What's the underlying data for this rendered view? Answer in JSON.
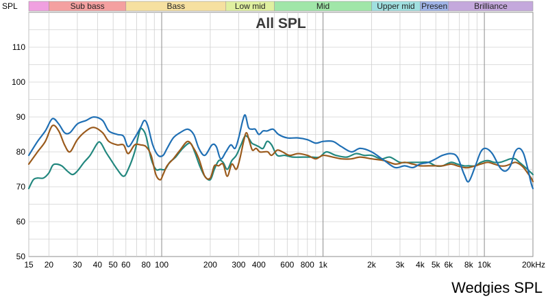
{
  "chart_data": {
    "type": "line",
    "title": "All SPL",
    "ylabel": "SPL",
    "xlabel": "",
    "xscale": "log",
    "xlim": [
      15,
      20000
    ],
    "ylim": [
      50,
      120
    ],
    "grid": true,
    "yticks": [
      50,
      60,
      70,
      80,
      90,
      100,
      110
    ],
    "xticks": [
      {
        "value": 15,
        "label": "15"
      },
      {
        "value": 20,
        "label": "20"
      },
      {
        "value": 30,
        "label": "30"
      },
      {
        "value": 40,
        "label": "40"
      },
      {
        "value": 50,
        "label": "50"
      },
      {
        "value": 60,
        "label": "60"
      },
      {
        "value": 80,
        "label": "80"
      },
      {
        "value": 100,
        "label": "100"
      },
      {
        "value": 200,
        "label": "200"
      },
      {
        "value": 300,
        "label": "300"
      },
      {
        "value": 400,
        "label": "400"
      },
      {
        "value": 600,
        "label": "600"
      },
      {
        "value": 800,
        "label": "800"
      },
      {
        "value": 1000,
        "label": "1k"
      },
      {
        "value": 2000,
        "label": "2k"
      },
      {
        "value": 3000,
        "label": "3k"
      },
      {
        "value": 4000,
        "label": "4k"
      },
      {
        "value": 5000,
        "label": "5k"
      },
      {
        "value": 6000,
        "label": "6k"
      },
      {
        "value": 8000,
        "label": "8k"
      },
      {
        "value": 10000,
        "label": "10k"
      },
      {
        "value": 20000,
        "label": "20kHz"
      }
    ],
    "bands": [
      {
        "label": "",
        "from": 15,
        "to": 20,
        "color": "#f0a0e0"
      },
      {
        "label": "Sub bass",
        "from": 20,
        "to": 60,
        "color": "#f4a0a0"
      },
      {
        "label": "Bass",
        "from": 60,
        "to": 250,
        "color": "#f6e0a0"
      },
      {
        "label": "Low mid",
        "from": 250,
        "to": 500,
        "color": "#e0f0a0"
      },
      {
        "label": "Mid",
        "from": 500,
        "to": 2000,
        "color": "#a0e6a8"
      },
      {
        "label": "Upper mid",
        "from": 2000,
        "to": 4000,
        "color": "#a0e0e0"
      },
      {
        "label": "Presen",
        "from": 4000,
        "to": 6000,
        "color": "#a0b4e8"
      },
      {
        "label": "Brilliance",
        "from": 6000,
        "to": 20000,
        "color": "#c4a8dc"
      }
    ],
    "series": [
      {
        "color": "#1f6fb4",
        "points": [
          [
            15,
            79
          ],
          [
            17,
            83
          ],
          [
            19,
            86
          ],
          [
            21,
            89.5
          ],
          [
            23,
            88
          ],
          [
            25,
            85.5
          ],
          [
            27,
            85.5
          ],
          [
            30,
            88
          ],
          [
            34,
            89
          ],
          [
            38,
            90
          ],
          [
            43,
            89
          ],
          [
            47,
            86
          ],
          [
            53,
            85
          ],
          [
            58,
            84.5
          ],
          [
            62,
            81.5
          ],
          [
            68,
            84
          ],
          [
            74,
            87
          ],
          [
            78,
            89
          ],
          [
            82,
            87.5
          ],
          [
            88,
            82
          ],
          [
            95,
            79
          ],
          [
            102,
            79
          ],
          [
            108,
            81
          ],
          [
            118,
            84
          ],
          [
            130,
            85.5
          ],
          [
            145,
            86.5
          ],
          [
            158,
            85
          ],
          [
            170,
            81
          ],
          [
            185,
            79
          ],
          [
            205,
            82
          ],
          [
            218,
            81.5
          ],
          [
            232,
            78
          ],
          [
            250,
            80
          ],
          [
            268,
            82
          ],
          [
            285,
            81
          ],
          [
            300,
            84
          ],
          [
            318,
            89
          ],
          [
            330,
            90.5
          ],
          [
            345,
            87
          ],
          [
            362,
            86.5
          ],
          [
            380,
            86.5
          ],
          [
            400,
            85
          ],
          [
            425,
            86
          ],
          [
            450,
            86
          ],
          [
            490,
            86.5
          ],
          [
            530,
            85
          ],
          [
            600,
            84
          ],
          [
            700,
            84
          ],
          [
            800,
            83.5
          ],
          [
            900,
            82.5
          ],
          [
            1000,
            83
          ],
          [
            1150,
            83
          ],
          [
            1300,
            81.5
          ],
          [
            1500,
            80
          ],
          [
            1700,
            81
          ],
          [
            2000,
            80
          ],
          [
            2400,
            77.5
          ],
          [
            2800,
            75.5
          ],
          [
            3200,
            76
          ],
          [
            3600,
            75.5
          ],
          [
            4000,
            76.5
          ],
          [
            4500,
            77
          ],
          [
            5000,
            78
          ],
          [
            5500,
            79
          ],
          [
            6200,
            79.5
          ],
          [
            6800,
            78.5
          ],
          [
            7500,
            73.5
          ],
          [
            8000,
            71.5
          ],
          [
            8800,
            76
          ],
          [
            9500,
            80
          ],
          [
            10200,
            81
          ],
          [
            11200,
            79.5
          ],
          [
            12500,
            75.5
          ],
          [
            13500,
            74.5
          ],
          [
            14500,
            76
          ],
          [
            15500,
            80
          ],
          [
            16500,
            81
          ],
          [
            17500,
            79.5
          ],
          [
            18500,
            75.5
          ],
          [
            19500,
            71
          ],
          [
            20000,
            69.5
          ]
        ]
      },
      {
        "color": "#9a5a1c",
        "points": [
          [
            15,
            76.5
          ],
          [
            17,
            80
          ],
          [
            19,
            83
          ],
          [
            21,
            87.5
          ],
          [
            23,
            86
          ],
          [
            25,
            82
          ],
          [
            27,
            80
          ],
          [
            30,
            83.5
          ],
          [
            34,
            86
          ],
          [
            38,
            87
          ],
          [
            43,
            85.5
          ],
          [
            47,
            83
          ],
          [
            53,
            82
          ],
          [
            58,
            82
          ],
          [
            62,
            79.5
          ],
          [
            68,
            82
          ],
          [
            74,
            82
          ],
          [
            80,
            81.5
          ],
          [
            86,
            79
          ],
          [
            92,
            73.5
          ],
          [
            98,
            72
          ],
          [
            102,
            73.5
          ],
          [
            108,
            76
          ],
          [
            118,
            78
          ],
          [
            130,
            80.5
          ],
          [
            145,
            83
          ],
          [
            158,
            81
          ],
          [
            170,
            78
          ],
          [
            185,
            73
          ],
          [
            200,
            72.5
          ],
          [
            212,
            76
          ],
          [
            225,
            76
          ],
          [
            240,
            76.5
          ],
          [
            255,
            73
          ],
          [
            272,
            76.5
          ],
          [
            290,
            75
          ],
          [
            305,
            78
          ],
          [
            322,
            83
          ],
          [
            335,
            85.5
          ],
          [
            350,
            83
          ],
          [
            365,
            80.5
          ],
          [
            385,
            81
          ],
          [
            405,
            80
          ],
          [
            430,
            80
          ],
          [
            455,
            80
          ],
          [
            480,
            79
          ],
          [
            520,
            80.5
          ],
          [
            560,
            80
          ],
          [
            620,
            79
          ],
          [
            700,
            79.5
          ],
          [
            800,
            79
          ],
          [
            900,
            78
          ],
          [
            1000,
            79
          ],
          [
            1150,
            78.5
          ],
          [
            1300,
            78
          ],
          [
            1500,
            78
          ],
          [
            1700,
            78.5
          ],
          [
            2000,
            78
          ],
          [
            2400,
            77.5
          ],
          [
            2800,
            76.5
          ],
          [
            3200,
            77
          ],
          [
            3600,
            76.5
          ],
          [
            4000,
            76
          ],
          [
            4500,
            76
          ],
          [
            5000,
            76
          ],
          [
            5500,
            76
          ],
          [
            6200,
            76.5
          ],
          [
            6800,
            76
          ],
          [
            7500,
            75.5
          ],
          [
            8000,
            75.5
          ],
          [
            8800,
            76
          ],
          [
            9500,
            76.5
          ],
          [
            10500,
            77
          ],
          [
            11500,
            76.5
          ],
          [
            12500,
            76
          ],
          [
            13500,
            76
          ],
          [
            14500,
            76.5
          ],
          [
            15500,
            77
          ],
          [
            16500,
            76.5
          ],
          [
            17500,
            75.5
          ],
          [
            18500,
            74
          ],
          [
            19500,
            72.5
          ],
          [
            20000,
            71.5
          ]
        ]
      },
      {
        "color": "#22877e",
        "points": [
          [
            15,
            69.5
          ],
          [
            16,
            72
          ],
          [
            17,
            72.5
          ],
          [
            18.5,
            72.5
          ],
          [
            20,
            74
          ],
          [
            21,
            76
          ],
          [
            22,
            76.5
          ],
          [
            24,
            76
          ],
          [
            26,
            74.5
          ],
          [
            28,
            73.5
          ],
          [
            30,
            74.5
          ],
          [
            33,
            77
          ],
          [
            36,
            79
          ],
          [
            40,
            82.5
          ],
          [
            42,
            82.5
          ],
          [
            45,
            80
          ],
          [
            48,
            78
          ],
          [
            53,
            75
          ],
          [
            58,
            73
          ],
          [
            62,
            75
          ],
          [
            68,
            80
          ],
          [
            73,
            86
          ],
          [
            76,
            86.5
          ],
          [
            80,
            84.5
          ],
          [
            86,
            78
          ],
          [
            92,
            75
          ],
          [
            98,
            75
          ],
          [
            105,
            75
          ],
          [
            112,
            77
          ],
          [
            122,
            78.5
          ],
          [
            135,
            81
          ],
          [
            150,
            82.5
          ],
          [
            160,
            80
          ],
          [
            172,
            76
          ],
          [
            185,
            73
          ],
          [
            200,
            72
          ],
          [
            212,
            75
          ],
          [
            226,
            77.5
          ],
          [
            240,
            77
          ],
          [
            255,
            75
          ],
          [
            272,
            77.5
          ],
          [
            290,
            79
          ],
          [
            310,
            82
          ],
          [
            328,
            84.5
          ],
          [
            345,
            84
          ],
          [
            362,
            82.5
          ],
          [
            380,
            82
          ],
          [
            400,
            81.5
          ],
          [
            425,
            81
          ],
          [
            450,
            83
          ],
          [
            480,
            82
          ],
          [
            520,
            79
          ],
          [
            580,
            79
          ],
          [
            650,
            78.5
          ],
          [
            750,
            78.5
          ],
          [
            850,
            78.5
          ],
          [
            950,
            78.5
          ],
          [
            1050,
            80
          ],
          [
            1200,
            79
          ],
          [
            1400,
            78.5
          ],
          [
            1600,
            79.5
          ],
          [
            1800,
            79
          ],
          [
            2000,
            79
          ],
          [
            2300,
            78
          ],
          [
            2600,
            78.5
          ],
          [
            3000,
            77
          ],
          [
            3500,
            77
          ],
          [
            4000,
            77
          ],
          [
            4500,
            77
          ],
          [
            5000,
            76
          ],
          [
            5500,
            76
          ],
          [
            6200,
            77
          ],
          [
            6800,
            76.5
          ],
          [
            7500,
            76
          ],
          [
            8000,
            76
          ],
          [
            8800,
            76
          ],
          [
            9500,
            77
          ],
          [
            10500,
            77.5
          ],
          [
            11500,
            77
          ],
          [
            12500,
            77
          ],
          [
            13500,
            77.5
          ],
          [
            14500,
            78
          ],
          [
            15500,
            78
          ],
          [
            16500,
            77
          ],
          [
            17500,
            76
          ],
          [
            18500,
            75
          ],
          [
            19500,
            74
          ],
          [
            20000,
            73.5
          ]
        ]
      }
    ]
  },
  "caption": "Wedgies SPL"
}
